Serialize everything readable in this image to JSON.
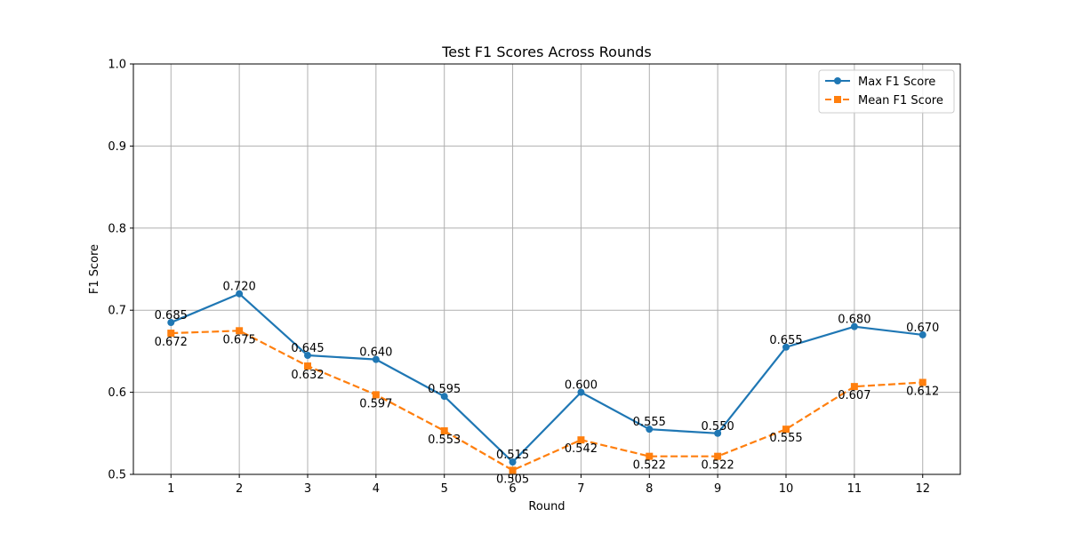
{
  "chart_data": {
    "type": "line",
    "title": "Test F1 Scores Across Rounds",
    "xlabel": "Round",
    "ylabel": "F1 Score",
    "x": [
      1,
      2,
      3,
      4,
      5,
      6,
      7,
      8,
      9,
      10,
      11,
      12
    ],
    "xlim": [
      0.45,
      12.55
    ],
    "ylim": [
      0.5,
      1.0
    ],
    "yticks": [
      0.5,
      0.6,
      0.7,
      0.8,
      0.9,
      1.0
    ],
    "ytick_labels": [
      "0.5",
      "0.6",
      "0.7",
      "0.8",
      "0.9",
      "1.0"
    ],
    "xtick_labels": [
      "1",
      "2",
      "3",
      "4",
      "5",
      "6",
      "7",
      "8",
      "9",
      "10",
      "11",
      "12"
    ],
    "grid": true,
    "legend_position": "top-right",
    "series": [
      {
        "name": "Max F1 Score",
        "color": "#1f77b4",
        "line_style": "solid",
        "marker": "circle",
        "label_position": "above",
        "values": [
          0.685,
          0.72,
          0.645,
          0.64,
          0.595,
          0.515,
          0.6,
          0.555,
          0.55,
          0.655,
          0.68,
          0.67
        ],
        "labels": [
          "0.685",
          "0.720",
          "0.645",
          "0.640",
          "0.595",
          "0.515",
          "0.600",
          "0.555",
          "0.550",
          "0.655",
          "0.680",
          "0.670"
        ]
      },
      {
        "name": "Mean F1 Score",
        "color": "#ff7f0e",
        "line_style": "dashed",
        "marker": "square",
        "label_position": "below",
        "values": [
          0.672,
          0.675,
          0.632,
          0.597,
          0.553,
          0.505,
          0.542,
          0.522,
          0.522,
          0.555,
          0.607,
          0.612
        ],
        "labels": [
          "0.672",
          "0.675",
          "0.632",
          "0.597",
          "0.553",
          "0.505",
          "0.542",
          "0.522",
          "0.522",
          "0.555",
          "0.607",
          "0.612"
        ]
      }
    ]
  }
}
